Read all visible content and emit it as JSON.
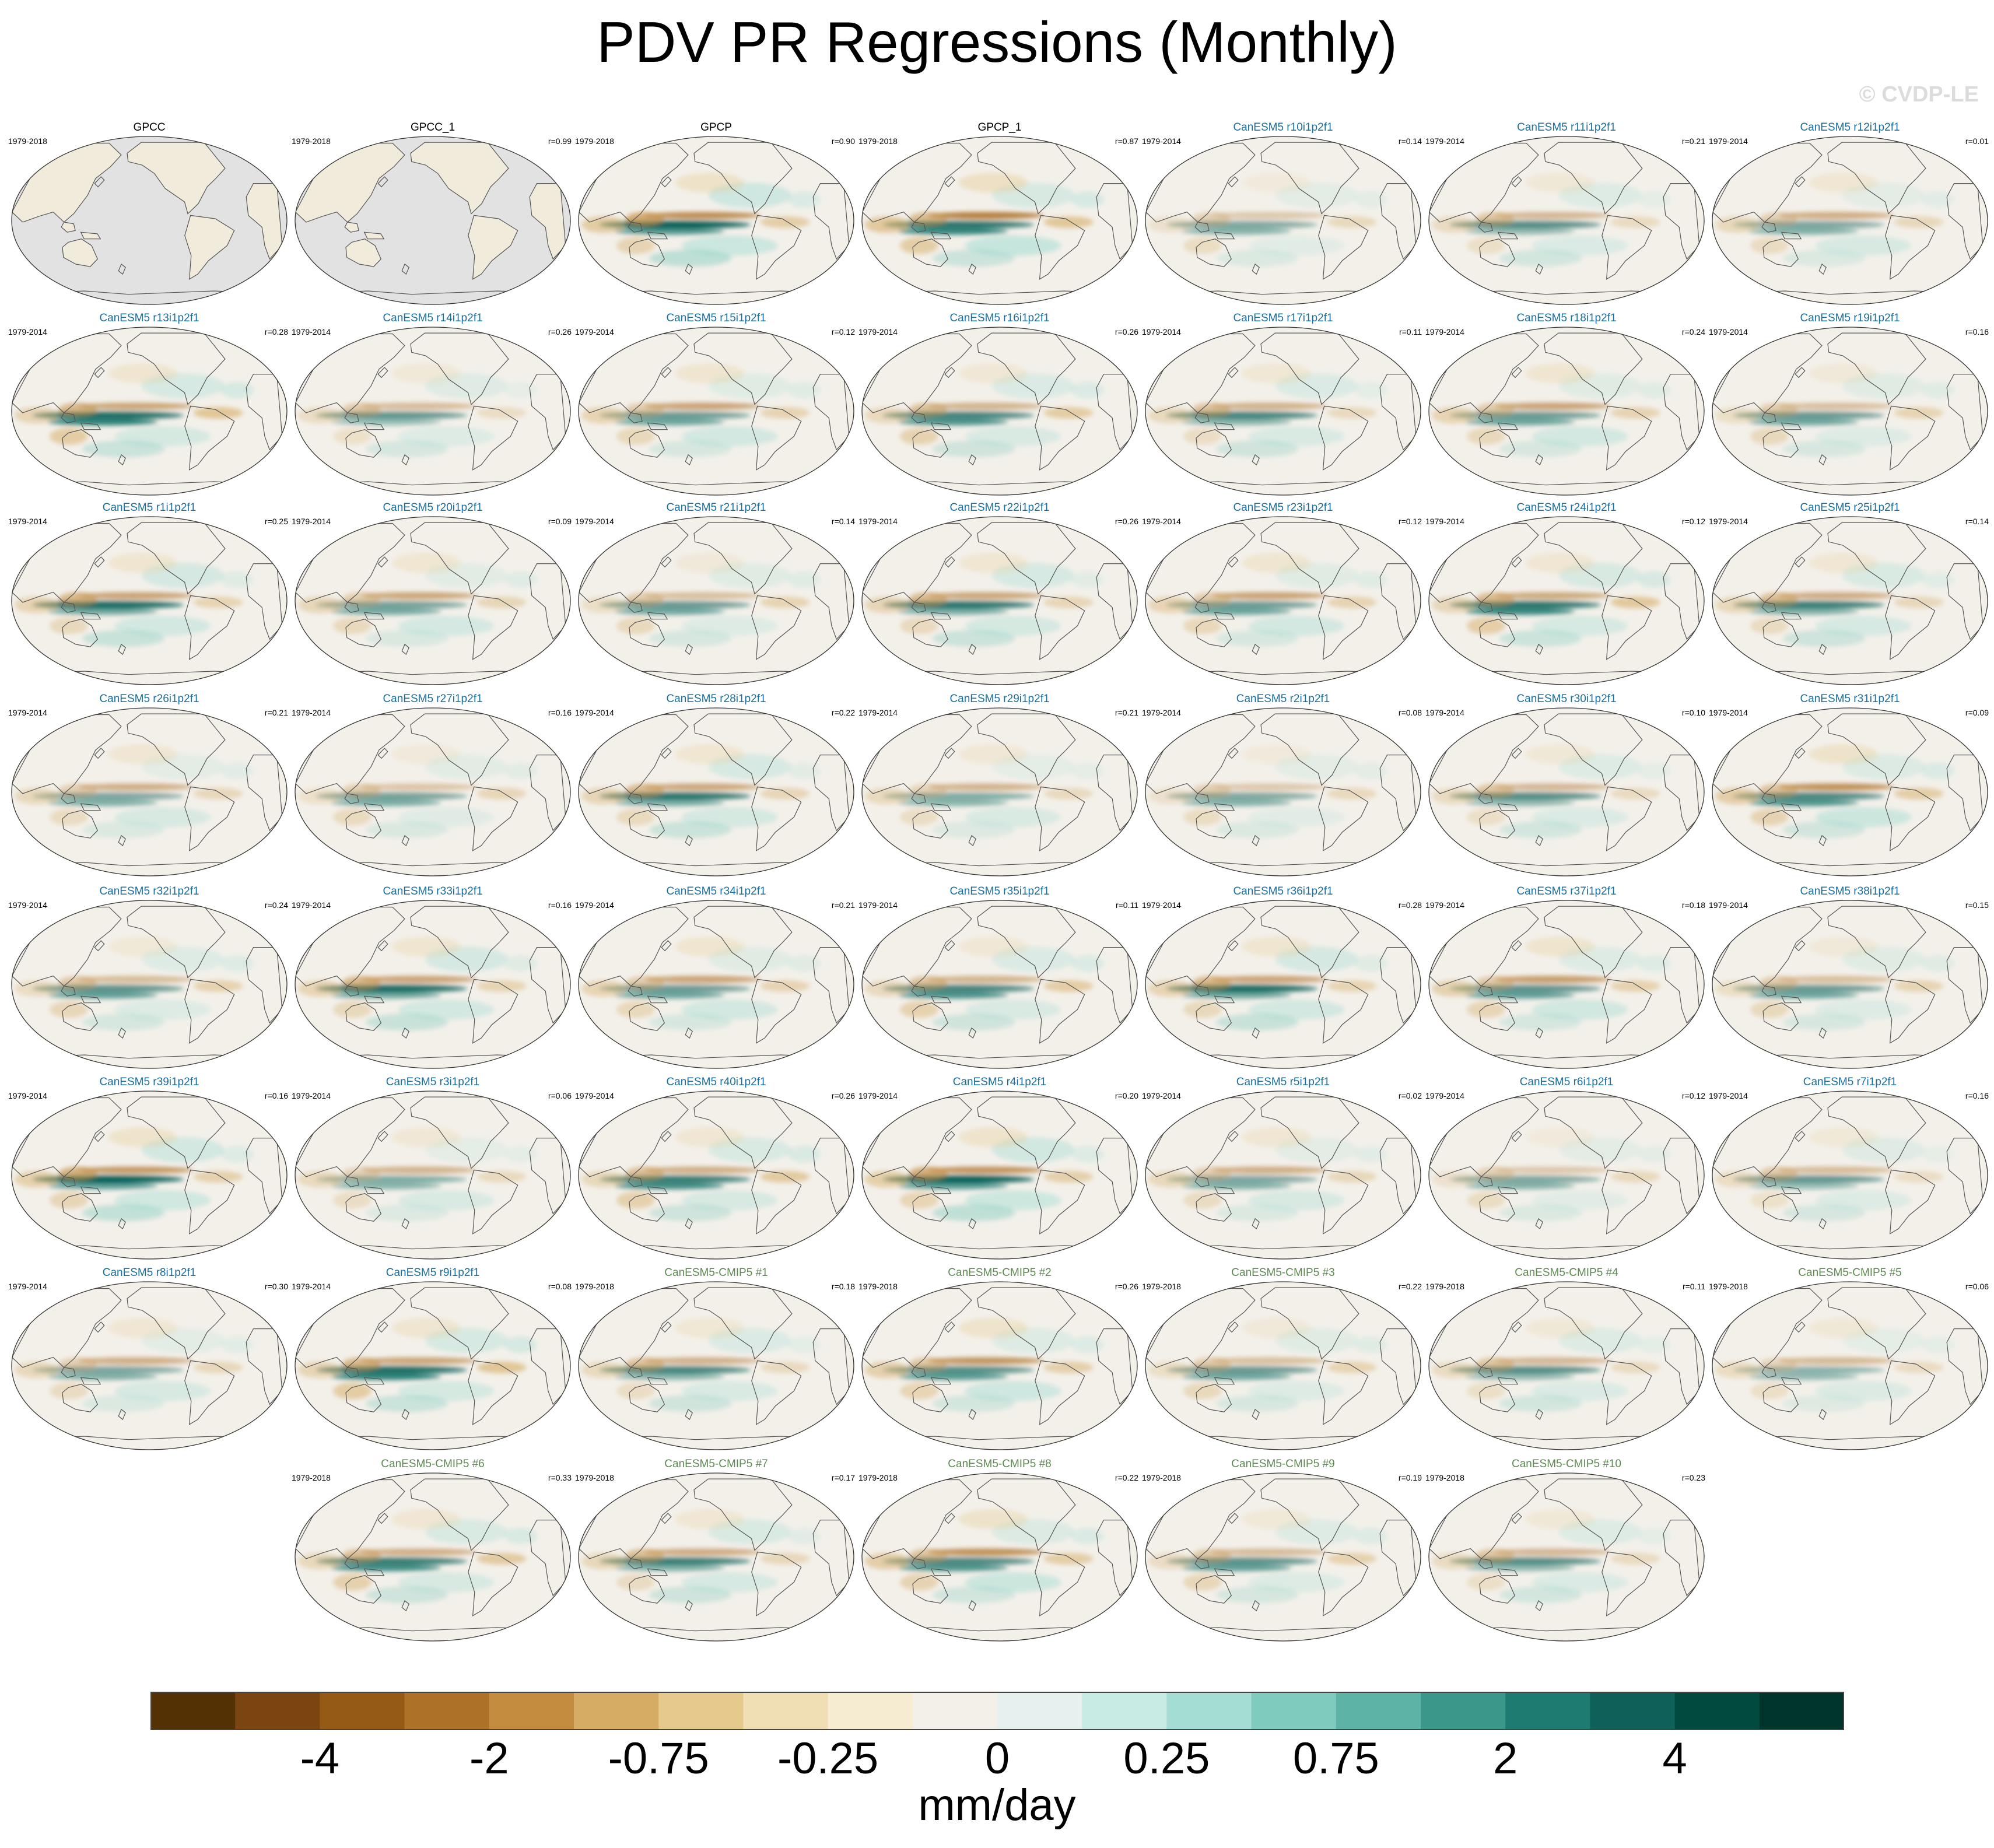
{
  "chart_data": {
    "type": "heatmap",
    "title": "PDV PR Regressions (Monthly)",
    "credit": "© CVDP-LE",
    "projection": "Robinson, Pacific-centered global maps",
    "colorbar": {
      "label": "mm/day",
      "ticks": [
        "-4",
        "-2",
        "-0.75",
        "-0.25",
        "0",
        "0.25",
        "0.75",
        "2",
        "4"
      ],
      "colors": [
        "#543005",
        "#7a4510",
        "#945a16",
        "#ad7128",
        "#c48c3f",
        "#d6ac64",
        "#e6c98c",
        "#f0dfb4",
        "#f6ecd2",
        "#f3f0ea",
        "#e6f1ef",
        "#c8ebe3",
        "#a3ddd3",
        "#7fcbbe",
        "#5db3a6",
        "#3c978b",
        "#1e7b72",
        "#0d6158",
        "#004a40",
        "#00352c"
      ]
    },
    "title_colors": {
      "observations": "#000000",
      "CanESM5": "#1a6e9e",
      "CanESM5-CMIP5": "#5e8a52"
    },
    "panels": [
      {
        "name": "GPCC",
        "period": "1979-2018",
        "r": "",
        "group": "observations",
        "pattern": 0
      },
      {
        "name": "GPCC_1",
        "period": "1979-2018",
        "r": "r=0.99",
        "group": "observations",
        "pattern": 0
      },
      {
        "name": "GPCP",
        "period": "1979-2018",
        "r": "r=0.90",
        "group": "observations",
        "pattern": 1.0
      },
      {
        "name": "GPCP_1",
        "period": "1979-2018",
        "r": "r=0.87",
        "group": "observations",
        "pattern": 1.0
      },
      {
        "name": "CanESM5 r10i1p2f1",
        "period": "1979-2014",
        "r": "r=0.14",
        "group": "CanESM5",
        "pattern": 0.5
      },
      {
        "name": "CanESM5 r11i1p2f1",
        "period": "1979-2014",
        "r": "r=0.21",
        "group": "CanESM5",
        "pattern": 0.6
      },
      {
        "name": "CanESM5 r12i1p2f1",
        "period": "1979-2014",
        "r": "r=0.01",
        "group": "CanESM5",
        "pattern": 0.6
      },
      {
        "name": "CanESM5 r13i1p2f1",
        "period": "1979-2014",
        "r": "r=0.28",
        "group": "CanESM5",
        "pattern": 0.9
      },
      {
        "name": "CanESM5 r14i1p2f1",
        "period": "1979-2014",
        "r": "r=0.26",
        "group": "CanESM5",
        "pattern": 0.55
      },
      {
        "name": "CanESM5 r15i1p2f1",
        "period": "1979-2014",
        "r": "r=0.12",
        "group": "CanESM5",
        "pattern": 0.7
      },
      {
        "name": "CanESM5 r16i1p2f1",
        "period": "1979-2014",
        "r": "r=0.26",
        "group": "CanESM5",
        "pattern": 0.75
      },
      {
        "name": "CanESM5 r17i1p2f1",
        "period": "1979-2014",
        "r": "r=0.11",
        "group": "CanESM5",
        "pattern": 0.65
      },
      {
        "name": "CanESM5 r18i1p2f1",
        "period": "1979-2014",
        "r": "r=0.24",
        "group": "CanESM5",
        "pattern": 0.7
      },
      {
        "name": "CanESM5 r19i1p2f1",
        "period": "1979-2014",
        "r": "r=0.16",
        "group": "CanESM5",
        "pattern": 0.6
      },
      {
        "name": "CanESM5 r1i1p2f1",
        "period": "1979-2014",
        "r": "r=0.25",
        "group": "CanESM5",
        "pattern": 0.8
      },
      {
        "name": "CanESM5 r20i1p2f1",
        "period": "1979-2014",
        "r": "r=0.09",
        "group": "CanESM5",
        "pattern": 0.65
      },
      {
        "name": "CanESM5 r21i1p2f1",
        "period": "1979-2014",
        "r": "r=0.14",
        "group": "CanESM5",
        "pattern": 0.6
      },
      {
        "name": "CanESM5 r22i1p2f1",
        "period": "1979-2014",
        "r": "r=0.26",
        "group": "CanESM5",
        "pattern": 0.75
      },
      {
        "name": "CanESM5 r23i1p2f1",
        "period": "1979-2014",
        "r": "r=0.12",
        "group": "CanESM5",
        "pattern": 0.7
      },
      {
        "name": "CanESM5 r24i1p2f1",
        "period": "1979-2014",
        "r": "r=0.12",
        "group": "CanESM5",
        "pattern": 0.85
      },
      {
        "name": "CanESM5 r25i1p2f1",
        "period": "1979-2014",
        "r": "r=0.14",
        "group": "CanESM5",
        "pattern": 0.7
      },
      {
        "name": "CanESM5 r26i1p2f1",
        "period": "1979-2014",
        "r": "r=0.21",
        "group": "CanESM5",
        "pattern": 0.6
      },
      {
        "name": "CanESM5 r27i1p2f1",
        "period": "1979-2014",
        "r": "r=0.16",
        "group": "CanESM5",
        "pattern": 0.55
      },
      {
        "name": "CanESM5 r28i1p2f1",
        "period": "1979-2014",
        "r": "r=0.22",
        "group": "CanESM5",
        "pattern": 0.75
      },
      {
        "name": "CanESM5 r29i1p2f1",
        "period": "1979-2014",
        "r": "r=0.21",
        "group": "CanESM5",
        "pattern": 0.55
      },
      {
        "name": "CanESM5 r2i1p2f1",
        "period": "1979-2014",
        "r": "r=0.08",
        "group": "CanESM5",
        "pattern": 0.5
      },
      {
        "name": "CanESM5 r30i1p2f1",
        "period": "1979-2014",
        "r": "r=0.10",
        "group": "CanESM5",
        "pattern": 0.6
      },
      {
        "name": "CanESM5 r31i1p2f1",
        "period": "1979-2014",
        "r": "r=0.09",
        "group": "CanESM5",
        "pattern": 0.85
      },
      {
        "name": "CanESM5 r32i1p2f1",
        "period": "1979-2014",
        "r": "r=0.24",
        "group": "CanESM5",
        "pattern": 0.65
      },
      {
        "name": "CanESM5 r33i1p2f1",
        "period": "1979-2014",
        "r": "r=0.16",
        "group": "CanESM5",
        "pattern": 0.8
      },
      {
        "name": "CanESM5 r34i1p2f1",
        "period": "1979-2014",
        "r": "r=0.21",
        "group": "CanESM5",
        "pattern": 0.7
      },
      {
        "name": "CanESM5 r35i1p2f1",
        "period": "1979-2014",
        "r": "r=0.11",
        "group": "CanESM5",
        "pattern": 0.75
      },
      {
        "name": "CanESM5 r36i1p2f1",
        "period": "1979-2014",
        "r": "r=0.28",
        "group": "CanESM5",
        "pattern": 0.8
      },
      {
        "name": "CanESM5 r37i1p2f1",
        "period": "1979-2014",
        "r": "r=0.18",
        "group": "CanESM5",
        "pattern": 0.75
      },
      {
        "name": "CanESM5 r38i1p2f1",
        "period": "1979-2014",
        "r": "r=0.15",
        "group": "CanESM5",
        "pattern": 0.6
      },
      {
        "name": "CanESM5 r39i1p2f1",
        "period": "1979-2014",
        "r": "r=0.16",
        "group": "CanESM5",
        "pattern": 0.9
      },
      {
        "name": "CanESM5 r3i1p2f1",
        "period": "1979-2014",
        "r": "r=0.06",
        "group": "CanESM5",
        "pattern": 0.55
      },
      {
        "name": "CanESM5 r40i1p2f1",
        "period": "1979-2014",
        "r": "r=0.26",
        "group": "CanESM5",
        "pattern": 0.8
      },
      {
        "name": "CanESM5 r4i1p2f1",
        "period": "1979-2014",
        "r": "r=0.20",
        "group": "CanESM5",
        "pattern": 0.95
      },
      {
        "name": "CanESM5 r5i1p2f1",
        "period": "1979-2014",
        "r": "r=0.02",
        "group": "CanESM5",
        "pattern": 0.6
      },
      {
        "name": "CanESM5 r6i1p2f1",
        "period": "1979-2014",
        "r": "r=0.12",
        "group": "CanESM5",
        "pattern": 0.5
      },
      {
        "name": "CanESM5 r7i1p2f1",
        "period": "1979-2014",
        "r": "r=0.16",
        "group": "CanESM5",
        "pattern": 0.55
      },
      {
        "name": "CanESM5 r8i1p2f1",
        "period": "1979-2014",
        "r": "r=0.30",
        "group": "CanESM5",
        "pattern": 0.6
      },
      {
        "name": "CanESM5 r9i1p2f1",
        "period": "1979-2014",
        "r": "r=0.08",
        "group": "CanESM5",
        "pattern": 0.9
      },
      {
        "name": "CanESM5-CMIP5 #1",
        "period": "1979-2018",
        "r": "r=0.18",
        "group": "CanESM5-CMIP5",
        "pattern": 0.65
      },
      {
        "name": "CanESM5-CMIP5 #2",
        "period": "1979-2018",
        "r": "r=0.26",
        "group": "CanESM5-CMIP5",
        "pattern": 0.8
      },
      {
        "name": "CanESM5-CMIP5 #3",
        "period": "1979-2018",
        "r": "r=0.22",
        "group": "CanESM5-CMIP5",
        "pattern": 0.6
      },
      {
        "name": "CanESM5-CMIP5 #4",
        "period": "1979-2018",
        "r": "r=0.11",
        "group": "CanESM5-CMIP5",
        "pattern": 0.6
      },
      {
        "name": "CanESM5-CMIP5 #5",
        "period": "1979-2018",
        "r": "r=0.06",
        "group": "CanESM5-CMIP5",
        "pattern": 0.5
      },
      {
        "name": "CanESM5-CMIP5 #6",
        "period": "1979-2018",
        "r": "r=0.33",
        "group": "CanESM5-CMIP5",
        "pattern": 0.8
      },
      {
        "name": "CanESM5-CMIP5 #7",
        "period": "1979-2018",
        "r": "r=0.17",
        "group": "CanESM5-CMIP5",
        "pattern": 0.7
      },
      {
        "name": "CanESM5-CMIP5 #8",
        "period": "1979-2018",
        "r": "r=0.22",
        "group": "CanESM5-CMIP5",
        "pattern": 0.85
      },
      {
        "name": "CanESM5-CMIP5 #9",
        "period": "1979-2018",
        "r": "r=0.19",
        "group": "CanESM5-CMIP5",
        "pattern": 0.65
      },
      {
        "name": "CanESM5-CMIP5 #10",
        "period": "1979-2018",
        "r": "r=0.23",
        "group": "CanESM5-CMIP5",
        "pattern": 0.6
      }
    ]
  }
}
